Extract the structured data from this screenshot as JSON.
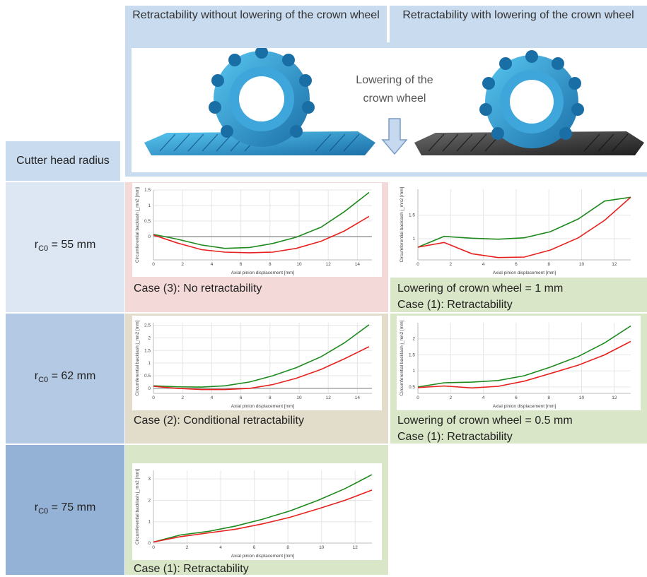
{
  "header": {
    "col1": "Retractability without lowering of the crown wheel",
    "col2": "Retractability with lowering of the crown wheel",
    "row_title": "Cutter head radius",
    "lowering_label": "Lowering of the crown wheel"
  },
  "rows": [
    {
      "label": "rc0 = 55 mm",
      "sub": "C0",
      "value": "= 55 mm"
    },
    {
      "label": "rc0 = 62 mm",
      "sub": "C0",
      "value": "= 62 mm"
    },
    {
      "label": "rc0 = 75 mm",
      "sub": "C0",
      "value": "= 75 mm"
    }
  ],
  "captions": {
    "r1c1": "Case (3): No retractability",
    "r1c2_line1": "Lowering of crown wheel = 1 mm",
    "r1c2_line2": "Case (1): Retractability",
    "r2c1": "Case (2): Conditional retractability",
    "r2c2_line1": "Lowering of crown wheel = 0.5 mm",
    "r2c2_line2": "Case (1): Retractability",
    "r3c1": "Case (1): Retractability"
  },
  "colors": {
    "header_bg": "#c9dbef",
    "row1_label_bg": "#dde7f3",
    "row2_label_bg": "#b4c9e3",
    "row3_label_bg": "#94b1d6",
    "case3_bg": "#f4d9d9",
    "case2_bg": "#e2dccb",
    "case1_bg": "#d9e6c7",
    "green": "#1e8a1e",
    "red": "#e8201e",
    "gear_blue": "#2a8fc9",
    "gear_dark": "#404040"
  },
  "chart_data": [
    {
      "id": "r1c1",
      "type": "line",
      "xlabel": "Axial pinion displacement [mm]",
      "ylabel": "Circumferential backlash j_mn2 [mm]",
      "xlim": [
        0,
        15
      ],
      "ylim": [
        -0.75,
        1.5
      ],
      "xticks": [
        0,
        2,
        4,
        6,
        8,
        10,
        12,
        14
      ],
      "yticks": [
        0,
        0.5,
        1,
        1.5
      ],
      "ytick_labels": [
        "0",
        "0.5",
        "1",
        "1.5"
      ],
      "zero_line": true,
      "series": [
        {
          "color": "green",
          "x": [
            0,
            1.6,
            3.3,
            4.9,
            6.6,
            8.2,
            9.8,
            11.5,
            13.1,
            14.8
          ],
          "y": [
            0.07,
            -0.08,
            -0.27,
            -0.38,
            -0.35,
            -0.22,
            -0.02,
            0.3,
            0.8,
            1.42
          ]
        },
        {
          "color": "red",
          "x": [
            0,
            1.6,
            3.3,
            4.9,
            6.6,
            8.2,
            9.8,
            11.5,
            13.1,
            14.8
          ],
          "y": [
            0.05,
            -0.2,
            -0.42,
            -0.5,
            -0.52,
            -0.5,
            -0.38,
            -0.15,
            0.18,
            0.65
          ]
        }
      ]
    },
    {
      "id": "r1c2",
      "type": "line",
      "xlabel": "Axial pinion displacement [mm]",
      "ylabel": "Circumferential backlash j_mn2 [mm]",
      "xlim": [
        0,
        13
      ],
      "ylim": [
        0.55,
        2.05
      ],
      "xticks": [
        0,
        2,
        4,
        6,
        8,
        10,
        12
      ],
      "yticks": [
        1,
        1.5
      ],
      "ytick_labels": [
        "1",
        "1.5"
      ],
      "zero_line": false,
      "series": [
        {
          "color": "green",
          "x": [
            0,
            1.6,
            3.3,
            4.9,
            6.5,
            8.1,
            9.8,
            11.4,
            13.0
          ],
          "y": [
            0.82,
            1.05,
            1.01,
            0.99,
            1.02,
            1.15,
            1.42,
            1.8,
            1.88
          ]
        },
        {
          "color": "red",
          "x": [
            0,
            1.6,
            3.3,
            4.9,
            6.5,
            8.1,
            9.8,
            11.4,
            13.0
          ],
          "y": [
            0.82,
            0.92,
            0.68,
            0.6,
            0.61,
            0.76,
            1.02,
            1.39,
            1.88
          ]
        }
      ]
    },
    {
      "id": "r2c1",
      "type": "line",
      "xlabel": "Axial pinion displacement [mm]",
      "ylabel": "Circumferential backlash j_mn2 [mm]",
      "xlim": [
        0,
        15
      ],
      "ylim": [
        -0.2,
        2.6
      ],
      "xticks": [
        0,
        2,
        4,
        6,
        8,
        10,
        12,
        14
      ],
      "yticks": [
        0,
        0.5,
        1,
        1.5,
        2,
        2.5
      ],
      "ytick_labels": [
        "0",
        "0.5",
        "1",
        "1.5",
        "2",
        "2.5"
      ],
      "zero_line": true,
      "series": [
        {
          "color": "green",
          "x": [
            0,
            1.6,
            3.3,
            4.9,
            6.6,
            8.2,
            9.8,
            11.5,
            13.1,
            14.8
          ],
          "y": [
            0.1,
            0.06,
            0.05,
            0.1,
            0.25,
            0.5,
            0.82,
            1.25,
            1.8,
            2.52
          ]
        },
        {
          "color": "red",
          "x": [
            0,
            1.6,
            3.3,
            4.9,
            6.6,
            8.2,
            9.8,
            11.5,
            13.1,
            14.8
          ],
          "y": [
            0.08,
            0.0,
            -0.05,
            -0.05,
            0.0,
            0.15,
            0.4,
            0.75,
            1.17,
            1.65
          ]
        }
      ]
    },
    {
      "id": "r2c2",
      "type": "line",
      "xlabel": "Axial pinion displacement [mm]",
      "ylabel": "Circumferential backlash j_mn2 [mm]",
      "xlim": [
        0,
        13
      ],
      "ylim": [
        0.3,
        2.5
      ],
      "xticks": [
        0,
        2,
        4,
        6,
        8,
        10,
        12
      ],
      "yticks": [
        0.5,
        1,
        1.5,
        2
      ],
      "ytick_labels": [
        "0.5",
        "1",
        "1.5",
        "2"
      ],
      "zero_line": false,
      "series": [
        {
          "color": "green",
          "x": [
            0,
            1.6,
            3.3,
            4.9,
            6.5,
            8.1,
            9.8,
            11.4,
            13.0
          ],
          "y": [
            0.5,
            0.63,
            0.65,
            0.7,
            0.85,
            1.12,
            1.45,
            1.87,
            2.4
          ]
        },
        {
          "color": "red",
          "x": [
            0,
            1.6,
            3.3,
            4.9,
            6.5,
            8.1,
            9.8,
            11.4,
            13.0
          ],
          "y": [
            0.48,
            0.53,
            0.47,
            0.52,
            0.68,
            0.92,
            1.18,
            1.5,
            1.92
          ]
        }
      ]
    },
    {
      "id": "r3c1",
      "type": "line",
      "xlabel": "Axial pinion displacement [mm]",
      "ylabel": "Circumferential backlash j_mn2 [mm]",
      "xlim": [
        0,
        13
      ],
      "ylim": [
        0,
        3.4
      ],
      "xticks": [
        0,
        2,
        4,
        6,
        8,
        10,
        12
      ],
      "yticks": [
        0,
        1,
        2,
        3
      ],
      "ytick_labels": [
        "0",
        "1",
        "2",
        "3"
      ],
      "zero_line": false,
      "series": [
        {
          "color": "green",
          "x": [
            0,
            1.6,
            3.3,
            4.9,
            6.5,
            8.1,
            9.8,
            11.4,
            13.0
          ],
          "y": [
            0.05,
            0.38,
            0.55,
            0.8,
            1.12,
            1.5,
            2.0,
            2.55,
            3.2
          ]
        },
        {
          "color": "red",
          "x": [
            0,
            1.6,
            3.3,
            4.9,
            6.5,
            8.1,
            9.8,
            11.4,
            13.0
          ],
          "y": [
            0.05,
            0.3,
            0.48,
            0.65,
            0.9,
            1.2,
            1.6,
            2.0,
            2.48
          ]
        }
      ]
    }
  ]
}
